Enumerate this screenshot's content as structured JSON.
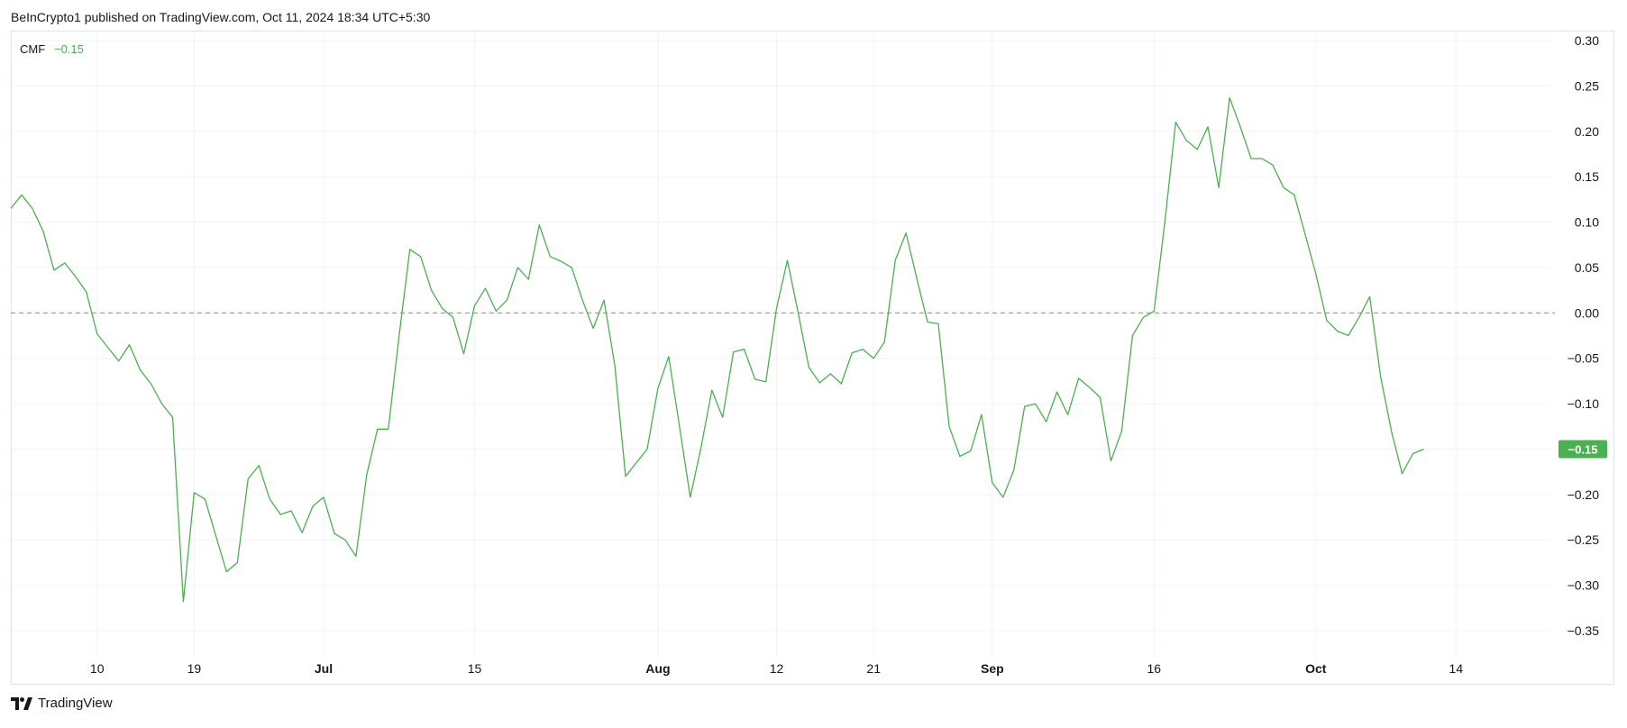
{
  "header": {
    "published": "BeInCrypto1 published on TradingView.com, Oct 11, 2024 18:34 UTC+5:30"
  },
  "footer": {
    "brand": "TradingView"
  },
  "colors": {
    "line": "#4caf50",
    "grid": "#f0f3fa",
    "border": "#e0e3eb",
    "zero": "#9598a1",
    "badge": "#4caf50"
  },
  "chart_data": {
    "type": "line",
    "indicator": {
      "name": "CMF",
      "value_label": "−0.15"
    },
    "ylim": [
      -0.35,
      0.3
    ],
    "y_ticks": [
      0.3,
      0.25,
      0.2,
      0.15,
      0.1,
      0.05,
      0.0,
      -0.05,
      -0.1,
      -0.15,
      -0.2,
      -0.25,
      -0.3,
      -0.35
    ],
    "y_tick_labels": [
      "0.30",
      "0.25",
      "0.20",
      "0.15",
      "0.10",
      "0.05",
      "0.00",
      "−0.05",
      "−0.10",
      "−0.15",
      "−0.20",
      "−0.25",
      "−0.30",
      "−0.35"
    ],
    "x_ticks": [
      {
        "label": "10",
        "x": "2024-06-10",
        "bold": false
      },
      {
        "label": "19",
        "x": "2024-06-19",
        "bold": false
      },
      {
        "label": "Jul",
        "x": "2024-07-01",
        "bold": true
      },
      {
        "label": "15",
        "x": "2024-07-15",
        "bold": false
      },
      {
        "label": "Aug",
        "x": "2024-08-01",
        "bold": true
      },
      {
        "label": "12",
        "x": "2024-08-12",
        "bold": false
      },
      {
        "label": "21",
        "x": "2024-08-21",
        "bold": false
      },
      {
        "label": "Sep",
        "x": "2024-09-01",
        "bold": true
      },
      {
        "label": "16",
        "x": "2024-09-16",
        "bold": false
      },
      {
        "label": "Oct",
        "x": "2024-10-01",
        "bold": true
      },
      {
        "label": "14",
        "x": "2024-10-14",
        "bold": false
      }
    ],
    "x_range": [
      "2024-06-02",
      "2024-10-24"
    ],
    "reference_line": 0.0,
    "last_value": -0.15,
    "last_value_label": "−0.15",
    "series": [
      {
        "points": [
          [
            "2024-06-02",
            0.115
          ],
          [
            "2024-06-03",
            0.13
          ],
          [
            "2024-06-04",
            0.115
          ],
          [
            "2024-06-05",
            0.09
          ],
          [
            "2024-06-06",
            0.047
          ],
          [
            "2024-06-07",
            0.055
          ],
          [
            "2024-06-08",
            0.04
          ],
          [
            "2024-06-09",
            0.023
          ],
          [
            "2024-06-10",
            -0.023
          ],
          [
            "2024-06-11",
            -0.038
          ],
          [
            "2024-06-12",
            -0.053
          ],
          [
            "2024-06-13",
            -0.035
          ],
          [
            "2024-06-14",
            -0.063
          ],
          [
            "2024-06-15",
            -0.078
          ],
          [
            "2024-06-16",
            -0.1
          ],
          [
            "2024-06-17",
            -0.115
          ],
          [
            "2024-06-18",
            -0.318
          ],
          [
            "2024-06-19",
            -0.198
          ],
          [
            "2024-06-20",
            -0.205
          ],
          [
            "2024-06-21",
            -0.245
          ],
          [
            "2024-06-22",
            -0.285
          ],
          [
            "2024-06-23",
            -0.275
          ],
          [
            "2024-06-24",
            -0.183
          ],
          [
            "2024-06-25",
            -0.168
          ],
          [
            "2024-06-26",
            -0.205
          ],
          [
            "2024-06-27",
            -0.222
          ],
          [
            "2024-06-28",
            -0.218
          ],
          [
            "2024-06-29",
            -0.242
          ],
          [
            "2024-06-30",
            -0.213
          ],
          [
            "2024-07-01",
            -0.203
          ],
          [
            "2024-07-02",
            -0.243
          ],
          [
            "2024-07-03",
            -0.25
          ],
          [
            "2024-07-04",
            -0.268
          ],
          [
            "2024-07-05",
            -0.178
          ],
          [
            "2024-07-06",
            -0.128
          ],
          [
            "2024-07-07",
            -0.128
          ],
          [
            "2024-07-08",
            -0.025
          ],
          [
            "2024-07-09",
            0.07
          ],
          [
            "2024-07-10",
            0.062
          ],
          [
            "2024-07-11",
            0.025
          ],
          [
            "2024-07-12",
            0.005
          ],
          [
            "2024-07-13",
            -0.005
          ],
          [
            "2024-07-14",
            -0.045
          ],
          [
            "2024-07-15",
            0.008
          ],
          [
            "2024-07-16",
            0.027
          ],
          [
            "2024-07-17",
            0.002
          ],
          [
            "2024-07-18",
            0.014
          ],
          [
            "2024-07-19",
            0.05
          ],
          [
            "2024-07-20",
            0.037
          ],
          [
            "2024-07-21",
            0.097
          ],
          [
            "2024-07-22",
            0.062
          ],
          [
            "2024-07-23",
            0.057
          ],
          [
            "2024-07-24",
            0.05
          ],
          [
            "2024-07-25",
            0.014
          ],
          [
            "2024-07-26",
            -0.017
          ],
          [
            "2024-07-27",
            0.014
          ],
          [
            "2024-07-28",
            -0.058
          ],
          [
            "2024-07-29",
            -0.18
          ],
          [
            "2024-07-30",
            -0.165
          ],
          [
            "2024-07-31",
            -0.15
          ],
          [
            "2024-08-01",
            -0.083
          ],
          [
            "2024-08-02",
            -0.048
          ],
          [
            "2024-08-03",
            -0.125
          ],
          [
            "2024-08-04",
            -0.203
          ],
          [
            "2024-08-05",
            -0.148
          ],
          [
            "2024-08-06",
            -0.085
          ],
          [
            "2024-08-07",
            -0.115
          ],
          [
            "2024-08-08",
            -0.043
          ],
          [
            "2024-08-09",
            -0.04
          ],
          [
            "2024-08-10",
            -0.073
          ],
          [
            "2024-08-11",
            -0.076
          ],
          [
            "2024-08-12",
            0.005
          ],
          [
            "2024-08-13",
            0.058
          ],
          [
            "2024-08-14",
            0.0
          ],
          [
            "2024-08-15",
            -0.06
          ],
          [
            "2024-08-16",
            -0.077
          ],
          [
            "2024-08-17",
            -0.067
          ],
          [
            "2024-08-18",
            -0.078
          ],
          [
            "2024-08-19",
            -0.044
          ],
          [
            "2024-08-20",
            -0.04
          ],
          [
            "2024-08-21",
            -0.05
          ],
          [
            "2024-08-22",
            -0.032
          ],
          [
            "2024-08-23",
            0.058
          ],
          [
            "2024-08-24",
            0.088
          ],
          [
            "2024-08-25",
            0.038
          ],
          [
            "2024-08-26",
            -0.01
          ],
          [
            "2024-08-27",
            -0.012
          ],
          [
            "2024-08-28",
            -0.125
          ],
          [
            "2024-08-29",
            -0.158
          ],
          [
            "2024-08-30",
            -0.152
          ],
          [
            "2024-08-31",
            -0.112
          ],
          [
            "2024-09-01",
            -0.187
          ],
          [
            "2024-09-02",
            -0.203
          ],
          [
            "2024-09-03",
            -0.173
          ],
          [
            "2024-09-04",
            -0.103
          ],
          [
            "2024-09-05",
            -0.1
          ],
          [
            "2024-09-06",
            -0.12
          ],
          [
            "2024-09-07",
            -0.087
          ],
          [
            "2024-09-08",
            -0.112
          ],
          [
            "2024-09-09",
            -0.072
          ],
          [
            "2024-09-10",
            -0.082
          ],
          [
            "2024-09-11",
            -0.093
          ],
          [
            "2024-09-12",
            -0.163
          ],
          [
            "2024-09-13",
            -0.13
          ],
          [
            "2024-09-14",
            -0.025
          ],
          [
            "2024-09-15",
            -0.005
          ],
          [
            "2024-09-16",
            0.002
          ],
          [
            "2024-09-17",
            0.1
          ],
          [
            "2024-09-18",
            0.21
          ],
          [
            "2024-09-19",
            0.19
          ],
          [
            "2024-09-20",
            0.18
          ],
          [
            "2024-09-21",
            0.205
          ],
          [
            "2024-09-22",
            0.138
          ],
          [
            "2024-09-23",
            0.237
          ],
          [
            "2024-09-24",
            0.205
          ],
          [
            "2024-09-25",
            0.17
          ],
          [
            "2024-09-26",
            0.17
          ],
          [
            "2024-09-27",
            0.163
          ],
          [
            "2024-09-28",
            0.138
          ],
          [
            "2024-09-29",
            0.13
          ],
          [
            "2024-09-30",
            0.087
          ],
          [
            "2024-10-01",
            0.043
          ],
          [
            "2024-10-02",
            -0.008
          ],
          [
            "2024-10-03",
            -0.02
          ],
          [
            "2024-10-04",
            -0.025
          ],
          [
            "2024-10-05",
            -0.005
          ],
          [
            "2024-10-06",
            0.018
          ],
          [
            "2024-10-07",
            -0.07
          ],
          [
            "2024-10-08",
            -0.13
          ],
          [
            "2024-10-09",
            -0.177
          ],
          [
            "2024-10-10",
            -0.155
          ],
          [
            "2024-10-11",
            -0.15
          ]
        ]
      }
    ]
  }
}
